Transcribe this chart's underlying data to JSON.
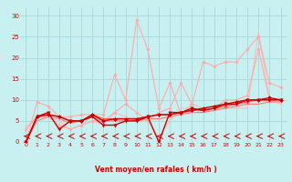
{
  "title": "",
  "xlabel": "Vent moyen/en rafales ( km/h )",
  "ylabel": "",
  "xlim": [
    -0.5,
    23.5
  ],
  "ylim": [
    0,
    32
  ],
  "yticks": [
    0,
    5,
    10,
    15,
    20,
    25,
    30
  ],
  "xticks": [
    0,
    1,
    2,
    3,
    4,
    5,
    6,
    7,
    8,
    9,
    10,
    11,
    12,
    13,
    14,
    15,
    16,
    17,
    18,
    19,
    20,
    21,
    22,
    23
  ],
  "background_color": "#c8f0f0",
  "grid_color": "#a8d8d8",
  "series": [
    {
      "x": [
        0,
        1,
        2,
        3,
        4,
        5,
        6,
        7,
        8,
        9,
        10,
        11,
        12,
        13,
        14,
        15,
        16,
        17,
        18,
        19,
        20,
        21,
        22,
        23
      ],
      "y": [
        0,
        9.5,
        8.5,
        6,
        6,
        6.5,
        6.5,
        6.5,
        16,
        10,
        29,
        22,
        8,
        14,
        6.5,
        9,
        19,
        18,
        19,
        19,
        22,
        25,
        14,
        13
      ],
      "color": "#ffaaaa",
      "lw": 0.8,
      "marker": "D",
      "ms": 1.8,
      "zorder": 3
    },
    {
      "x": [
        0,
        1,
        2,
        3,
        4,
        5,
        6,
        7,
        8,
        9,
        10,
        11,
        12,
        13,
        14,
        15,
        16,
        17,
        18,
        19,
        20,
        21,
        22,
        23
      ],
      "y": [
        3,
        6,
        6,
        4,
        3,
        4,
        5,
        5,
        7,
        9,
        7,
        5,
        7,
        8,
        14,
        9,
        8,
        8,
        10,
        10,
        11,
        22,
        10,
        9.5
      ],
      "color": "#ffaaaa",
      "lw": 0.8,
      "marker": "D",
      "ms": 1.8,
      "zorder": 3
    },
    {
      "x": [
        0,
        1,
        2,
        3,
        4,
        5,
        6,
        7,
        8,
        9,
        10,
        11,
        12,
        13,
        14,
        15,
        16,
        17,
        18,
        19,
        20,
        21,
        22,
        23
      ],
      "y": [
        3.5,
        6,
        6,
        5,
        3,
        4,
        5,
        4,
        7,
        6,
        5,
        5,
        1,
        5,
        8,
        8,
        7,
        8,
        8,
        8,
        8,
        26,
        10,
        9
      ],
      "color": "#ffbbbb",
      "lw": 0.8,
      "marker": null,
      "ms": 0,
      "zorder": 2
    },
    {
      "x": [
        0,
        1,
        2,
        3,
        4,
        5,
        6,
        7,
        8,
        9,
        10,
        11,
        12,
        13,
        14,
        15,
        16,
        17,
        18,
        19,
        20,
        21,
        22,
        23
      ],
      "y": [
        0,
        6,
        7,
        3,
        5,
        5,
        6,
        4,
        4,
        5,
        5,
        6,
        0,
        7,
        7,
        8,
        7.5,
        8,
        9,
        9,
        10,
        10,
        10,
        10
      ],
      "color": "#cc0000",
      "lw": 1.0,
      "marker": "v",
      "ms": 2.5,
      "zorder": 4
    },
    {
      "x": [
        0,
        1,
        2,
        3,
        4,
        5,
        6,
        7,
        8,
        9,
        10,
        11,
        12,
        13,
        14,
        15,
        16,
        17,
        18,
        19,
        20,
        21,
        22,
        23
      ],
      "y": [
        0,
        6,
        6.5,
        6,
        5,
        5,
        6.5,
        5,
        5.5,
        5.5,
        5.5,
        6,
        6.5,
        6.5,
        7,
        7.5,
        8,
        8.5,
        9,
        9.5,
        10,
        10,
        10.5,
        10
      ],
      "color": "#cc0000",
      "lw": 1.0,
      "marker": "D",
      "ms": 2.0,
      "zorder": 4
    },
    {
      "x": [
        0,
        1,
        2,
        3,
        4,
        5,
        6,
        7,
        8,
        9,
        10,
        11,
        12,
        13,
        14,
        15,
        16,
        17,
        18,
        19,
        20,
        21,
        22,
        23
      ],
      "y": [
        0,
        6,
        6.5,
        6,
        5,
        5,
        6.5,
        5.5,
        5.5,
        5.5,
        5.5,
        6,
        6.5,
        6.5,
        7,
        7.5,
        7.5,
        8,
        8.5,
        9,
        9.5,
        10,
        10,
        10
      ],
      "color": "#ff5555",
      "lw": 0.9,
      "marker": "D",
      "ms": 1.8,
      "zorder": 3
    },
    {
      "x": [
        0,
        1,
        2,
        3,
        4,
        5,
        6,
        7,
        8,
        9,
        10,
        11,
        12,
        13,
        14,
        15,
        16,
        17,
        18,
        19,
        20,
        21,
        22,
        23
      ],
      "y": [
        0,
        5,
        6,
        5.5,
        4.5,
        5,
        6,
        5,
        5,
        5,
        5,
        5.5,
        5.5,
        6,
        6.5,
        7,
        7,
        7.5,
        8,
        8.5,
        9,
        9,
        9.5,
        9.5
      ],
      "color": "#ff7777",
      "lw": 0.8,
      "marker": null,
      "ms": 0,
      "zorder": 2
    }
  ],
  "arrow_color": "#cc0000"
}
